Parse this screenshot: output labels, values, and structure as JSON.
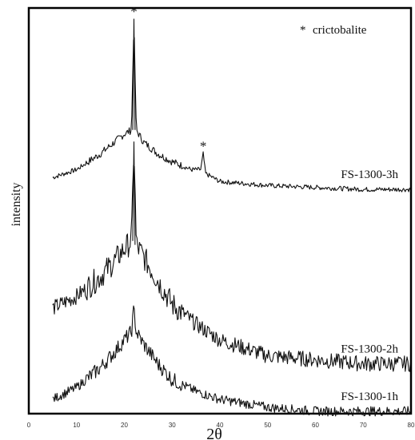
{
  "chart_data": {
    "type": "line",
    "xlabel": "2θ",
    "ylabel": "intensity",
    "xlim": [
      0,
      80
    ],
    "xticks": [
      0,
      10,
      20,
      30,
      40,
      50,
      60,
      70,
      80
    ],
    "grid": false,
    "legend": {
      "marker": "*",
      "label": "crictobalite",
      "placement": "top-right"
    },
    "peak_markers": [
      {
        "label": "*",
        "x": 22,
        "series": "FS-1300-3h"
      },
      {
        "label": "*",
        "x": 36.5,
        "series": "FS-1300-3h"
      }
    ],
    "series": [
      {
        "name": "FS-1300-3h",
        "x": [
          5,
          10,
          15,
          18,
          20,
          21.5,
          22,
          22.5,
          24,
          27,
          30,
          34,
          36,
          36.5,
          37,
          40,
          50,
          60,
          70,
          80
        ],
        "values": [
          0.58,
          0.6,
          0.64,
          0.67,
          0.69,
          0.7,
          0.98,
          0.7,
          0.67,
          0.64,
          0.62,
          0.6,
          0.6,
          0.64,
          0.59,
          0.57,
          0.56,
          0.555,
          0.55,
          0.55
        ]
      },
      {
        "name": "FS-1300-2h",
        "x": [
          5,
          10,
          15,
          18,
          20,
          21.5,
          22,
          22.5,
          24,
          27,
          30,
          35,
          40,
          50,
          60,
          70,
          80
        ],
        "values": [
          0.25,
          0.28,
          0.33,
          0.37,
          0.4,
          0.42,
          0.67,
          0.41,
          0.38,
          0.32,
          0.26,
          0.21,
          0.17,
          0.13,
          0.12,
          0.11,
          0.11
        ]
      },
      {
        "name": "FS-1300-1h",
        "x": [
          5,
          10,
          15,
          18,
          20,
          21.5,
          22,
          22.5,
          24,
          27,
          30,
          35,
          40,
          50,
          60,
          70,
          80
        ],
        "values": [
          0.02,
          0.05,
          0.1,
          0.14,
          0.17,
          0.19,
          0.25,
          0.19,
          0.16,
          0.11,
          0.07,
          0.04,
          0.02,
          0.0,
          -0.01,
          -0.01,
          -0.01
        ]
      }
    ]
  }
}
